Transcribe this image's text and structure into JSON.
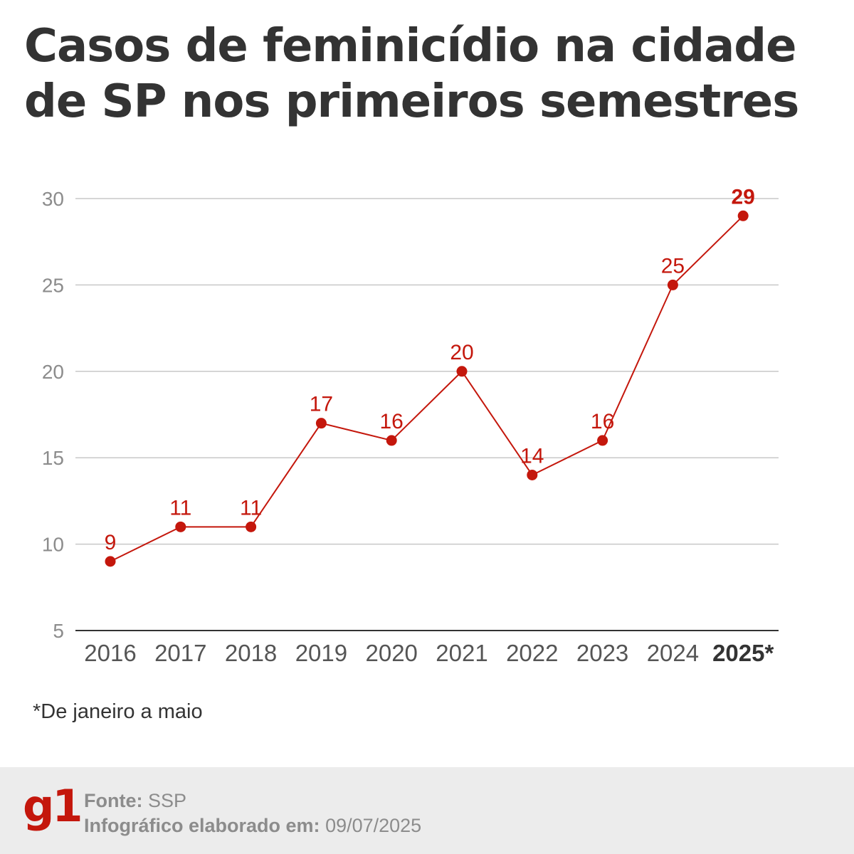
{
  "title": "Casos de feminicídio na cidade de SP nos primeiros semestres",
  "note": "*De janeiro a maio",
  "footer": {
    "logo": "g1",
    "source_label": "Fonte:",
    "source_value": "SSP",
    "date_label": "Infográfico elaborado em:",
    "date_value": "09/07/2025"
  },
  "colors": {
    "series": "#c4170c",
    "text": "#333333",
    "axis_text": "#8c8c8c",
    "grid": "#c8c8c8",
    "footer_bg": "#ececec"
  },
  "chart_data": {
    "type": "line",
    "title": "Casos de feminicídio na cidade de SP nos primeiros semestres",
    "xlabel": "",
    "ylabel": "",
    "categories": [
      "2016",
      "2017",
      "2018",
      "2019",
      "2020",
      "2021",
      "2022",
      "2023",
      "2024",
      "2025*"
    ],
    "values": [
      9,
      11,
      11,
      17,
      16,
      20,
      14,
      16,
      25,
      29
    ],
    "ylim": [
      5,
      30
    ],
    "yticks": [
      5,
      10,
      15,
      20,
      25,
      30
    ],
    "grid": true,
    "legend": "none",
    "highlight_last": true
  }
}
